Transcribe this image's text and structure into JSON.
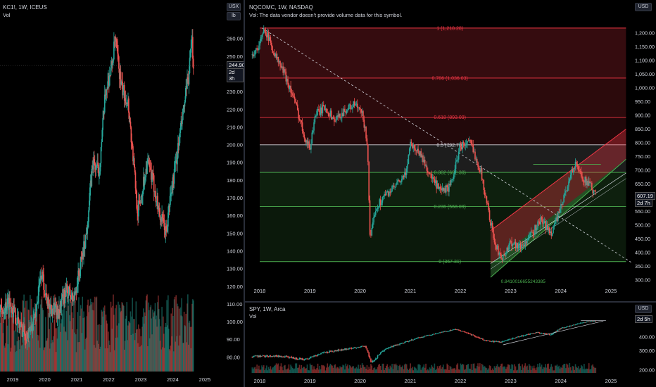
{
  "left_chart": {
    "title": "KC1!, 1W, ICEUS",
    "sub": "Vol",
    "unit_top": "USX",
    "unit_bottom": "lb",
    "last_price": "244.90",
    "countdown": "2d 3h"
  },
  "main_chart": {
    "title": "NQCOMC, 1W, NASDAQ",
    "sub": "Vol: The data vendor doesn't provide volume data for this symbol.",
    "currency": "USD",
    "last_price": "607.19",
    "countdown": "2d 7h"
  },
  "bottom_chart": {
    "title": "SPY, 1W, Arca",
    "sub": "Vol",
    "currency": "USD",
    "countdown": "2d 5h"
  },
  "chart_data": [
    {
      "type": "candlestick",
      "symbol": "KC1!",
      "x_ticks": [
        "2019",
        "2020",
        "2021",
        "2022",
        "2023",
        "2024",
        "2025"
      ],
      "y_ticks": [
        80,
        90,
        100,
        110,
        120,
        130,
        140,
        150,
        160,
        170,
        180,
        190,
        200,
        210,
        220,
        230,
        240,
        250,
        260
      ],
      "ylim": [
        72,
        270
      ],
      "last": 244.9,
      "path": [
        [
          2018.0,
          123
        ],
        [
          2018.3,
          115
        ],
        [
          2018.6,
          105
        ],
        [
          2018.9,
          112
        ],
        [
          2019.2,
          98
        ],
        [
          2019.5,
          92
        ],
        [
          2019.7,
          104
        ],
        [
          2019.9,
          128
        ],
        [
          2020.1,
          110
        ],
        [
          2020.4,
          105
        ],
        [
          2020.7,
          118
        ],
        [
          2020.9,
          112
        ],
        [
          2021.1,
          130
        ],
        [
          2021.3,
          150
        ],
        [
          2021.5,
          190
        ],
        [
          2021.7,
          185
        ],
        [
          2021.9,
          230
        ],
        [
          2022.1,
          245
        ],
        [
          2022.2,
          260
        ],
        [
          2022.4,
          232
        ],
        [
          2022.6,
          225
        ],
        [
          2022.8,
          185
        ],
        [
          2022.9,
          162
        ],
        [
          2023.0,
          170
        ],
        [
          2023.2,
          190
        ],
        [
          2023.4,
          178
        ],
        [
          2023.6,
          160
        ],
        [
          2023.8,
          150
        ],
        [
          2023.9,
          168
        ],
        [
          2024.1,
          190
        ],
        [
          2024.3,
          215
        ],
        [
          2024.5,
          240
        ],
        [
          2024.6,
          258
        ],
        [
          2024.65,
          244.9
        ]
      ]
    },
    {
      "type": "candlestick",
      "symbol": "NQCOMC",
      "x_ticks": [
        "2018",
        "2019",
        "2020",
        "2021",
        "2022",
        "2023",
        "2024",
        "2025"
      ],
      "y_ticks": [
        300,
        350,
        400,
        450,
        500,
        550,
        600,
        650,
        700,
        750,
        800,
        850,
        900,
        950,
        1000,
        1050,
        1100,
        1150,
        1200
      ],
      "ylim": [
        290,
        1225
      ],
      "last": 607.19,
      "fib_levels": [
        {
          "ratio": "1",
          "label": "1 (1,218.28)",
          "price": 1218.28,
          "color": "#f23645"
        },
        {
          "ratio": "0.786",
          "label": "0.786 (1,036.03)",
          "price": 1036.03,
          "color": "#f23645"
        },
        {
          "ratio": "0.618",
          "label": "0.618 (893.09)",
          "price": 893.09,
          "color": "#f23645"
        },
        {
          "ratio": "0.5",
          "label": "0.5 (792.70)",
          "price": 792.7,
          "color": "#d1d4dc"
        },
        {
          "ratio": "0.382",
          "label": "0.382 (692.30)",
          "price": 692.3,
          "color": "#4caf50"
        },
        {
          "ratio": "0.236",
          "label": "0.236 (568.09)",
          "price": 568.09,
          "color": "#4caf50"
        },
        {
          "ratio": "0",
          "label": "0 (367.31)",
          "price": 367.31,
          "color": "#4caf50"
        }
      ],
      "extension_label": "0.8410016655243385",
      "path": [
        [
          2017.85,
          1120
        ],
        [
          2018.0,
          1160
        ],
        [
          2018.1,
          1218
        ],
        [
          2018.3,
          1120
        ],
        [
          2018.5,
          1050
        ],
        [
          2018.7,
          950
        ],
        [
          2018.9,
          820
        ],
        [
          2019.0,
          780
        ],
        [
          2019.1,
          900
        ],
        [
          2019.3,
          930
        ],
        [
          2019.5,
          880
        ],
        [
          2019.7,
          920
        ],
        [
          2019.9,
          940
        ],
        [
          2020.05,
          900
        ],
        [
          2020.15,
          790
        ],
        [
          2020.2,
          430
        ],
        [
          2020.3,
          560
        ],
        [
          2020.5,
          610
        ],
        [
          2020.7,
          640
        ],
        [
          2020.9,
          680
        ],
        [
          2021.0,
          800
        ],
        [
          2021.2,
          760
        ],
        [
          2021.4,
          680
        ],
        [
          2021.6,
          620
        ],
        [
          2021.8,
          640
        ],
        [
          2022.0,
          790
        ],
        [
          2022.2,
          800
        ],
        [
          2022.4,
          700
        ],
        [
          2022.55,
          560
        ],
        [
          2022.7,
          420
        ],
        [
          2022.85,
          380
        ],
        [
          2023.0,
          440
        ],
        [
          2023.2,
          420
        ],
        [
          2023.4,
          460
        ],
        [
          2023.6,
          520
        ],
        [
          2023.8,
          470
        ],
        [
          2024.0,
          560
        ],
        [
          2024.2,
          690
        ],
        [
          2024.3,
          720
        ],
        [
          2024.45,
          670
        ],
        [
          2024.6,
          640
        ],
        [
          2024.7,
          607.19
        ]
      ]
    },
    {
      "type": "candlestick",
      "symbol": "SPY",
      "x_ticks": [
        "2018",
        "2019",
        "2020",
        "2021",
        "2022",
        "2023",
        "2024",
        "2025"
      ],
      "y_ticks": [
        200,
        300,
        400
      ],
      "ylim": [
        180,
        580
      ],
      "path": [
        [
          2017.85,
          265
        ],
        [
          2018.3,
          270
        ],
        [
          2018.9,
          250
        ],
        [
          2019.3,
          290
        ],
        [
          2019.9,
          320
        ],
        [
          2020.1,
          335
        ],
        [
          2020.22,
          230
        ],
        [
          2020.5,
          310
        ],
        [
          2020.9,
          360
        ],
        [
          2021.3,
          410
        ],
        [
          2021.9,
          470
        ],
        [
          2022.1,
          440
        ],
        [
          2022.5,
          370
        ],
        [
          2022.8,
          360
        ],
        [
          2023.0,
          385
        ],
        [
          2023.5,
          440
        ],
        [
          2023.8,
          420
        ],
        [
          2024.0,
          480
        ],
        [
          2024.3,
          520
        ],
        [
          2024.5,
          550
        ],
        [
          2024.7,
          560
        ]
      ]
    }
  ]
}
